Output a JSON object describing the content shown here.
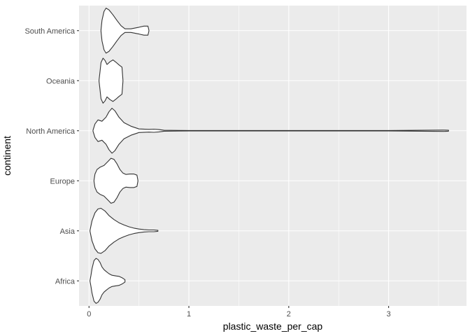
{
  "chart_data": {
    "type": "violin",
    "orientation": "horizontal",
    "xlabel": "plastic_waste_per_cap",
    "ylabel": "continent",
    "xlim": [
      -0.1,
      3.78
    ],
    "x_ticks": [
      0,
      1,
      2,
      3
    ],
    "x_tick_labels": [
      "0",
      "1",
      "2",
      "3"
    ],
    "grid": true,
    "panel_background": "#ebebeb",
    "grid_color": "#ffffff",
    "violin_fill": "#ffffff",
    "violin_outline": "#333333",
    "categories": [
      "Africa",
      "Asia",
      "Europe",
      "North America",
      "Oceania",
      "South America"
    ],
    "violins": [
      {
        "category": "Africa",
        "profile": [
          [
            0.01,
            0.02
          ],
          [
            0.02,
            0.25
          ],
          [
            0.03,
            0.55
          ],
          [
            0.05,
            0.9
          ],
          [
            0.07,
            1.0
          ],
          [
            0.09,
            0.95
          ],
          [
            0.11,
            0.82
          ],
          [
            0.13,
            0.62
          ],
          [
            0.15,
            0.5
          ],
          [
            0.17,
            0.42
          ],
          [
            0.2,
            0.32
          ],
          [
            0.23,
            0.25
          ],
          [
            0.27,
            0.22
          ],
          [
            0.3,
            0.2
          ],
          [
            0.33,
            0.14
          ],
          [
            0.36,
            0.05
          ]
        ]
      },
      {
        "category": "Asia",
        "profile": [
          [
            0.01,
            0.02
          ],
          [
            0.03,
            0.45
          ],
          [
            0.06,
            0.8
          ],
          [
            0.09,
            0.97
          ],
          [
            0.12,
            1.0
          ],
          [
            0.16,
            0.88
          ],
          [
            0.2,
            0.68
          ],
          [
            0.25,
            0.5
          ],
          [
            0.3,
            0.36
          ],
          [
            0.35,
            0.26
          ],
          [
            0.4,
            0.18
          ],
          [
            0.45,
            0.12
          ],
          [
            0.5,
            0.08
          ],
          [
            0.55,
            0.05
          ],
          [
            0.6,
            0.04
          ],
          [
            0.65,
            0.04
          ],
          [
            0.69,
            0.02
          ]
        ]
      },
      {
        "category": "Europe",
        "profile": [
          [
            0.05,
            0.02
          ],
          [
            0.06,
            0.3
          ],
          [
            0.08,
            0.5
          ],
          [
            0.11,
            0.6
          ],
          [
            0.15,
            0.68
          ],
          [
            0.19,
            0.86
          ],
          [
            0.22,
            1.0
          ],
          [
            0.25,
            0.95
          ],
          [
            0.28,
            0.75
          ],
          [
            0.31,
            0.5
          ],
          [
            0.34,
            0.34
          ],
          [
            0.37,
            0.28
          ],
          [
            0.41,
            0.3
          ],
          [
            0.45,
            0.3
          ],
          [
            0.48,
            0.25
          ],
          [
            0.49,
            0.02
          ]
        ]
      },
      {
        "category": "North America",
        "profile": [
          [
            0.04,
            0.02
          ],
          [
            0.06,
            0.3
          ],
          [
            0.09,
            0.48
          ],
          [
            0.13,
            0.42
          ],
          [
            0.17,
            0.6
          ],
          [
            0.2,
            0.84
          ],
          [
            0.23,
            1.0
          ],
          [
            0.26,
            0.88
          ],
          [
            0.3,
            0.6
          ],
          [
            0.35,
            0.36
          ],
          [
            0.42,
            0.2
          ],
          [
            0.5,
            0.08
          ],
          [
            0.6,
            0.06
          ],
          [
            0.65,
            0.07
          ],
          [
            0.7,
            0.05
          ],
          [
            0.75,
            0.02
          ],
          [
            1.0,
            0.01
          ],
          [
            2.0,
            0.01
          ],
          [
            3.0,
            0.01
          ],
          [
            3.55,
            0.03
          ],
          [
            3.6,
            0.02
          ]
        ]
      },
      {
        "category": "Oceania",
        "profile": [
          [
            0.1,
            0.02
          ],
          [
            0.11,
            0.4
          ],
          [
            0.12,
            0.8
          ],
          [
            0.14,
            1.0
          ],
          [
            0.16,
            0.9
          ],
          [
            0.18,
            0.72
          ],
          [
            0.21,
            0.84
          ],
          [
            0.24,
            0.92
          ],
          [
            0.27,
            0.82
          ],
          [
            0.3,
            0.7
          ],
          [
            0.33,
            0.6
          ],
          [
            0.34,
            0.02
          ]
        ]
      },
      {
        "category": "South America",
        "profile": [
          [
            0.12,
            0.02
          ],
          [
            0.13,
            0.45
          ],
          [
            0.15,
            0.85
          ],
          [
            0.17,
            1.0
          ],
          [
            0.2,
            0.92
          ],
          [
            0.24,
            0.7
          ],
          [
            0.28,
            0.45
          ],
          [
            0.32,
            0.22
          ],
          [
            0.36,
            0.08
          ],
          [
            0.42,
            0.08
          ],
          [
            0.5,
            0.15
          ],
          [
            0.55,
            0.2
          ],
          [
            0.59,
            0.2
          ],
          [
            0.6,
            0.02
          ]
        ]
      }
    ]
  }
}
